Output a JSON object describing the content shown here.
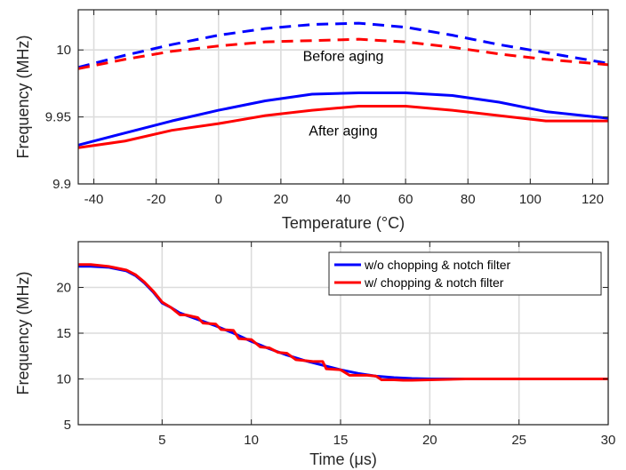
{
  "chart_data": [
    {
      "type": "line",
      "xlabel": "Temperature (°C)",
      "ylabel": "Frequency (MHz)",
      "xlim": [
        -45,
        125
      ],
      "ylim": [
        9.9,
        10.03
      ],
      "xticks": [
        -40,
        -20,
        0,
        20,
        40,
        60,
        80,
        100,
        120
      ],
      "xtick_labels": [
        "-40",
        "-20",
        "0",
        "20",
        "40",
        "60",
        "80",
        "100",
        "120"
      ],
      "yticks": [
        9.9,
        9.95,
        10
      ],
      "ytick_labels": [
        "9.9",
        "9.95",
        "10"
      ],
      "grid": true,
      "annotations": [
        {
          "text": "Before aging",
          "x": 40,
          "y": 9.996
        },
        {
          "text": "After aging",
          "x": 40,
          "y": 9.94
        }
      ],
      "series": [
        {
          "color": "#0000ff",
          "style": "dashed",
          "x": [
            -45,
            -30,
            -15,
            0,
            15,
            30,
            45,
            60,
            75,
            90,
            105,
            125
          ],
          "y": [
            9.987,
            9.996,
            10.004,
            10.011,
            10.016,
            10.019,
            10.02,
            10.017,
            10.011,
            10.004,
            9.998,
            9.99
          ]
        },
        {
          "color": "#ff0000",
          "style": "dashed",
          "x": [
            -45,
            -30,
            -15,
            0,
            15,
            30,
            45,
            60,
            75,
            90,
            105,
            125
          ],
          "y": [
            9.986,
            9.993,
            9.999,
            10.003,
            10.006,
            10.007,
            10.008,
            10.006,
            10.002,
            9.997,
            9.993,
            9.989
          ]
        },
        {
          "color": "#0000ff",
          "style": "solid",
          "x": [
            -45,
            -30,
            -15,
            0,
            15,
            30,
            45,
            60,
            75,
            90,
            105,
            125
          ],
          "y": [
            9.929,
            9.938,
            9.947,
            9.955,
            9.962,
            9.967,
            9.968,
            9.968,
            9.966,
            9.961,
            9.954,
            9.949
          ]
        },
        {
          "color": "#ff0000",
          "style": "solid",
          "x": [
            -45,
            -30,
            -15,
            0,
            15,
            30,
            45,
            60,
            75,
            90,
            105,
            125
          ],
          "y": [
            9.927,
            9.932,
            9.94,
            9.945,
            9.951,
            9.955,
            9.958,
            9.958,
            9.955,
            9.951,
            9.947,
            9.947
          ]
        }
      ]
    },
    {
      "type": "line",
      "xlabel": "Time (μs)",
      "ylabel": "Frequency (MHz)",
      "xlim": [
        0.3,
        30
      ],
      "ylim": [
        5,
        25
      ],
      "xticks": [
        5,
        10,
        15,
        20,
        25,
        30
      ],
      "xtick_labels": [
        "5",
        "10",
        "15",
        "20",
        "25",
        "30"
      ],
      "yticks": [
        5,
        10,
        15,
        20
      ],
      "ytick_labels": [
        "5",
        "10",
        "15",
        "20"
      ],
      "grid": true,
      "legend_position": "top-right",
      "series": [
        {
          "name": "w/o chopping & notch filter",
          "color": "#0000ff",
          "x": [
            0.3,
            1,
            2,
            3,
            3.5,
            4,
            4.5,
            5,
            5.5,
            6,
            7,
            8,
            9,
            10,
            11,
            12,
            13,
            14,
            15,
            16,
            17,
            18,
            19,
            20,
            22,
            25,
            30
          ],
          "y": [
            22.3,
            22.3,
            22.2,
            21.8,
            21.3,
            20.5,
            19.5,
            18.3,
            17.8,
            17.2,
            16.5,
            15.8,
            15.0,
            14.1,
            13.3,
            12.6,
            12.0,
            11.5,
            11.0,
            10.6,
            10.3,
            10.15,
            10.05,
            10.0,
            10.0,
            10.0,
            10.0
          ]
        },
        {
          "name": "w/ chopping & notch filter",
          "color": "#ff0000",
          "x": [
            0.3,
            1,
            2,
            3,
            3.5,
            4,
            4.5,
            5,
            5.5,
            6,
            6.3,
            7,
            7.3,
            8,
            8.3,
            9,
            9.3,
            10,
            10.5,
            11,
            11.5,
            12,
            12.5,
            13,
            13.5,
            14,
            14.2,
            15,
            15.5,
            16,
            16.5,
            17,
            17.3,
            18,
            18.5,
            19,
            20,
            22,
            25,
            30
          ],
          "y": [
            22.5,
            22.5,
            22.3,
            21.9,
            21.4,
            20.6,
            19.6,
            18.4,
            17.8,
            17.0,
            17.0,
            16.7,
            16.1,
            16.0,
            15.4,
            15.3,
            14.4,
            14.3,
            13.5,
            13.4,
            12.9,
            12.8,
            12.1,
            12.0,
            11.9,
            11.9,
            11.1,
            11.0,
            10.4,
            10.4,
            10.4,
            10.3,
            9.9,
            9.9,
            9.85,
            9.85,
            9.9,
            10.0,
            10.0,
            10.0
          ]
        }
      ]
    }
  ]
}
